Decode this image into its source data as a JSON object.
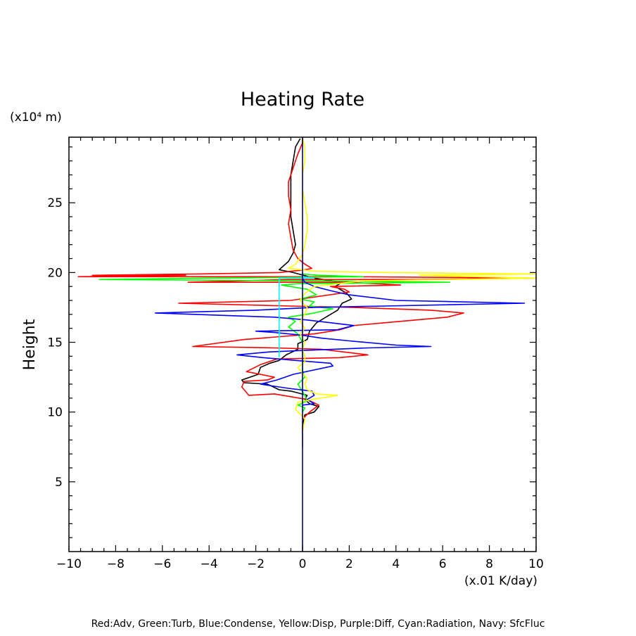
{
  "chart_data": {
    "type": "line",
    "title": "Heating Rate",
    "ylabel": "Height",
    "yunit": "(x10⁴ m)",
    "xunit": "(x.01 K/day)",
    "xlim": [
      -10,
      10
    ],
    "ylim": [
      0,
      29.7
    ],
    "xticks": [
      -10,
      -8,
      -6,
      -4,
      -2,
      0,
      2,
      4,
      6,
      8,
      10
    ],
    "xtick_labels": [
      "−10",
      "−8",
      "−6",
      "−4",
      "−2",
      "0",
      "2",
      "4",
      "6",
      "8",
      "10"
    ],
    "yticks": [
      5,
      10,
      15,
      20,
      25
    ],
    "ytick_labels": [
      "5",
      "10",
      "15",
      "20",
      "25"
    ],
    "legend_text": "Red:Adv, Green:Turb, Blue:Condense, Yellow:Disp, Purple:Diff, Cyan:Radiation, Navy: SfcFluc",
    "grid": false,
    "series": [
      {
        "color": "#000000",
        "points": [
          [
            0,
            7.5
          ],
          [
            0,
            9
          ],
          [
            0.1,
            9.8
          ],
          [
            0.5,
            10
          ],
          [
            0.7,
            10.4
          ],
          [
            0.3,
            10.6
          ],
          [
            0.1,
            10.9
          ],
          [
            0.2,
            11.2
          ],
          [
            -0.5,
            11.5
          ],
          [
            -1,
            11.6
          ],
          [
            -1.5,
            12
          ],
          [
            -2.5,
            12.1
          ],
          [
            -2.6,
            12.3
          ],
          [
            -1.9,
            12.7
          ],
          [
            -1.8,
            13.2
          ],
          [
            -1.4,
            13.5
          ],
          [
            -1,
            13.7
          ],
          [
            -0.7,
            14.1
          ],
          [
            -0.2,
            14.5
          ],
          [
            -0.2,
            14.9
          ],
          [
            0.2,
            15.2
          ],
          [
            0.3,
            15.8
          ],
          [
            0.6,
            16.4
          ],
          [
            1.1,
            16.9
          ],
          [
            1.5,
            17.3
          ],
          [
            1.7,
            17.8
          ],
          [
            2.1,
            18.1
          ],
          [
            1.9,
            18.5
          ],
          [
            1.4,
            19
          ],
          [
            1.7,
            19.3
          ],
          [
            0.5,
            19.6
          ],
          [
            -0.4,
            20
          ],
          [
            -1,
            20.2
          ],
          [
            -0.6,
            20.8
          ],
          [
            -0.4,
            21.4
          ],
          [
            -0.3,
            22
          ],
          [
            -0.4,
            23
          ],
          [
            -0.5,
            24
          ],
          [
            -0.5,
            25
          ],
          [
            -0.5,
            26
          ],
          [
            -0.5,
            27
          ],
          [
            -0.4,
            28
          ],
          [
            -0.3,
            29
          ],
          [
            -0.1,
            29.6
          ]
        ]
      },
      {
        "color": "#ff0000",
        "points": [
          [
            0,
            9.5
          ],
          [
            0.3,
            10
          ],
          [
            0.7,
            10.5
          ],
          [
            0.2,
            10.9
          ],
          [
            -1.2,
            11.3
          ],
          [
            -2.3,
            11.2
          ],
          [
            -2.6,
            11.8
          ],
          [
            -2.5,
            12.2
          ],
          [
            -1.5,
            12.3
          ],
          [
            -1.2,
            12.5
          ],
          [
            -2.4,
            12.9
          ],
          [
            -1.8,
            13.4
          ],
          [
            -1.1,
            13.8
          ],
          [
            1.6,
            13.9
          ],
          [
            2.8,
            14.1
          ],
          [
            0.8,
            14.5
          ],
          [
            -1.2,
            14.6
          ],
          [
            -4.7,
            14.7
          ],
          [
            -2.5,
            15.2
          ],
          [
            0.5,
            15.6
          ],
          [
            1.6,
            15.9
          ],
          [
            2.2,
            16.2
          ],
          [
            3.5,
            16.4
          ],
          [
            6.2,
            16.8
          ],
          [
            6.9,
            17.1
          ],
          [
            5.5,
            17.3
          ],
          [
            2.1,
            17.5
          ],
          [
            -0.5,
            17.6
          ],
          [
            -5.3,
            17.8
          ],
          [
            -0.5,
            18
          ],
          [
            2,
            18.6
          ],
          [
            1.8,
            18.8
          ],
          [
            1.2,
            19
          ],
          [
            4.2,
            19.1
          ],
          [
            2,
            19.3
          ],
          [
            -4.9,
            19.3
          ],
          [
            -0.6,
            19.5
          ],
          [
            5,
            19.5
          ],
          [
            10,
            19.6
          ],
          [
            2,
            19.7
          ],
          [
            -9.6,
            19.7
          ],
          [
            -5,
            19.8
          ],
          [
            -9,
            19.8
          ],
          [
            -4.5,
            19.9
          ],
          [
            -1,
            20
          ],
          [
            0.1,
            20.2
          ],
          [
            0.4,
            20.3
          ],
          [
            0.1,
            20.6
          ],
          [
            -0.2,
            21
          ],
          [
            -0.4,
            21.6
          ],
          [
            -0.5,
            22.5
          ],
          [
            -0.6,
            23.5
          ],
          [
            -0.5,
            24.5
          ],
          [
            -0.6,
            25.5
          ],
          [
            -0.6,
            26.5
          ],
          [
            -0.4,
            27.5
          ],
          [
            -0.2,
            28.5
          ],
          [
            0,
            29.3
          ]
        ]
      },
      {
        "color": "#00ff00",
        "points": [
          [
            0,
            10
          ],
          [
            0.1,
            10.3
          ],
          [
            -0.2,
            10.5
          ],
          [
            0.2,
            10.8
          ],
          [
            0.1,
            11.2
          ],
          [
            -0.2,
            12
          ],
          [
            0.1,
            12.5
          ],
          [
            0,
            13
          ],
          [
            0,
            13.5
          ],
          [
            0,
            14
          ],
          [
            0,
            14.5
          ],
          [
            0,
            15
          ],
          [
            -0.2,
            15.6
          ],
          [
            -0.6,
            16.1
          ],
          [
            -0.3,
            16.5
          ],
          [
            -0.6,
            16.8
          ],
          [
            0.5,
            17.1
          ],
          [
            1.3,
            17.4
          ],
          [
            0.3,
            17.6
          ],
          [
            0.5,
            17.9
          ],
          [
            -0.1,
            18.1
          ],
          [
            0.6,
            18.4
          ],
          [
            0.2,
            18.8
          ],
          [
            -0.9,
            19.1
          ],
          [
            -0.2,
            19.2
          ],
          [
            6.3,
            19.3
          ],
          [
            1,
            19.4
          ],
          [
            -8.7,
            19.5
          ],
          [
            -4,
            19.6
          ],
          [
            2.6,
            19.7
          ],
          [
            0.7,
            19.8
          ],
          [
            0,
            19.9
          ]
        ]
      },
      {
        "color": "#0000ff",
        "points": [
          [
            0,
            10.5
          ],
          [
            0.5,
            10.6
          ],
          [
            0.2,
            10.9
          ],
          [
            0.5,
            11.2
          ],
          [
            0.4,
            11.5
          ],
          [
            -0.6,
            11.7
          ],
          [
            -1.8,
            12
          ],
          [
            -1.1,
            12.3
          ],
          [
            -0.4,
            12.7
          ],
          [
            1.3,
            13.3
          ],
          [
            1.2,
            13.5
          ],
          [
            -0.3,
            13.7
          ],
          [
            -1.7,
            13.9
          ],
          [
            -2.8,
            14.1
          ],
          [
            -1.5,
            14.3
          ],
          [
            -0.2,
            14.4
          ],
          [
            2.8,
            14.6
          ],
          [
            5.5,
            14.7
          ],
          [
            4,
            14.8
          ],
          [
            2,
            15.1
          ],
          [
            0.8,
            15.3
          ],
          [
            0,
            15.5
          ],
          [
            -1.2,
            15.7
          ],
          [
            -2,
            15.8
          ],
          [
            1.5,
            15.9
          ],
          [
            2.2,
            16.2
          ],
          [
            0.2,
            16.6
          ],
          [
            -1.2,
            16.8
          ],
          [
            -6.3,
            17.1
          ],
          [
            -2,
            17.3
          ],
          [
            0.5,
            17.5
          ],
          [
            3.5,
            17.6
          ],
          [
            9.5,
            17.8
          ],
          [
            4,
            18
          ],
          [
            2,
            18.4
          ],
          [
            1.2,
            18.7
          ],
          [
            0.5,
            19
          ],
          [
            0.1,
            19.3
          ],
          [
            0,
            19.6
          ],
          [
            0,
            20
          ]
        ]
      },
      {
        "color": "#ffff00",
        "points": [
          [
            0,
            7.5
          ],
          [
            0,
            8.5
          ],
          [
            0.1,
            9.5
          ],
          [
            -0.3,
            10.2
          ],
          [
            -0.2,
            10.7
          ],
          [
            0.4,
            10.9
          ],
          [
            1.5,
            11.2
          ],
          [
            0.6,
            11.3
          ],
          [
            0.2,
            11.6
          ],
          [
            0.1,
            12
          ],
          [
            0.2,
            12.4
          ],
          [
            0,
            12.8
          ],
          [
            -0.2,
            13.2
          ],
          [
            0.1,
            13.6
          ],
          [
            0.1,
            14
          ],
          [
            0,
            14.5
          ],
          [
            0.1,
            15
          ],
          [
            -0.1,
            15.6
          ],
          [
            0.1,
            16
          ],
          [
            -0.1,
            16.5
          ],
          [
            0.1,
            17
          ],
          [
            0.2,
            17.5
          ],
          [
            -0.1,
            18
          ],
          [
            0.1,
            18.5
          ],
          [
            0.5,
            19
          ],
          [
            2.5,
            19.4
          ],
          [
            10,
            19.6
          ],
          [
            5,
            19.8
          ],
          [
            10,
            19.9
          ],
          [
            3.5,
            20
          ],
          [
            0.5,
            20.1
          ],
          [
            -0.6,
            20.3
          ],
          [
            -0.3,
            20.6
          ],
          [
            0,
            21.3
          ],
          [
            0.1,
            22
          ],
          [
            0.2,
            23
          ],
          [
            0.2,
            24
          ],
          [
            0.1,
            25
          ],
          [
            0,
            26
          ],
          [
            0,
            27
          ],
          [
            0.1,
            28
          ],
          [
            0.1,
            29
          ],
          [
            0,
            29.6
          ]
        ]
      },
      {
        "color": "#00ffff",
        "points": [
          [
            -1,
            13.9
          ],
          [
            -1,
            14.5
          ],
          [
            -1,
            15.5
          ],
          [
            -1,
            16.5
          ],
          [
            -1,
            17.5
          ],
          [
            -1,
            18.5
          ],
          [
            -1,
            19.6
          ],
          [
            0.5,
            19.6
          ],
          [
            0,
            19.7
          ]
        ]
      },
      {
        "color": "#000080",
        "points": [
          [
            0,
            0
          ],
          [
            0,
            29.7
          ]
        ]
      }
    ]
  }
}
